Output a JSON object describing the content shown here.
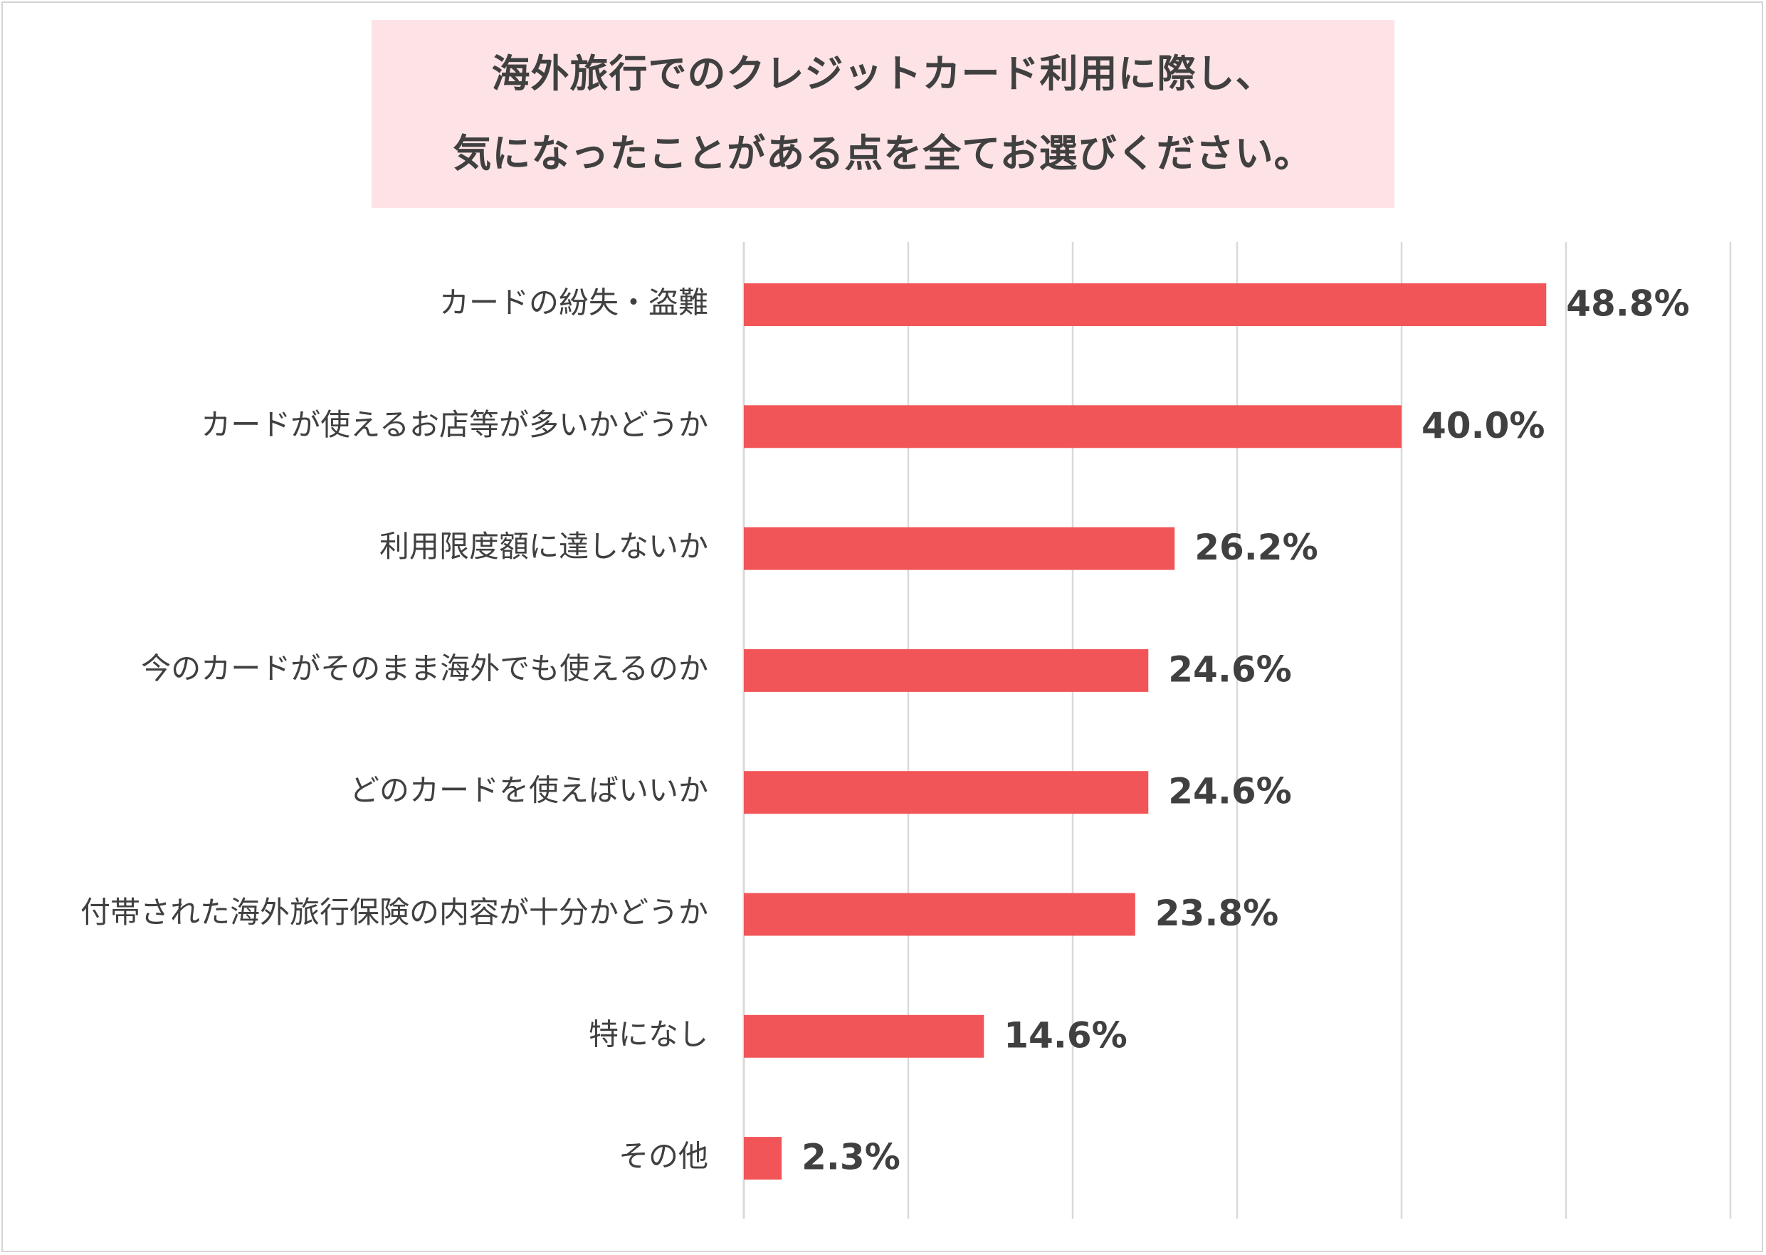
{
  "chart_data": {
    "type": "bar",
    "orientation": "horizontal",
    "title_lines": [
      "海外旅行でのクレジットカード利用に際し、",
      "気になったことがある点を全てお選びください。"
    ],
    "categories": [
      "カードの紛失・盗難",
      "カードが使えるお店等が多いかどうか",
      "利用限度額に達しないか",
      "今のカードがそのまま海外でも使えるのか",
      "どのカードを使えばいいか",
      "付帯された海外旅行保険の内容が十分かどうか",
      "特になし",
      "その他"
    ],
    "values": [
      48.8,
      40.0,
      26.2,
      24.6,
      24.6,
      23.8,
      14.6,
      2.3
    ],
    "value_labels": [
      "48.8%",
      "40.0%",
      "26.2%",
      "24.6%",
      "24.6%",
      "23.8%",
      "14.6%",
      "2.3%"
    ],
    "unit": "%",
    "xlim": [
      0,
      60
    ],
    "grid_step": 10,
    "grid": true,
    "bar_color": "#f15557",
    "title_background": "#fde3e5",
    "text_color": "#404040",
    "grid_color": "#d9d9d9"
  }
}
